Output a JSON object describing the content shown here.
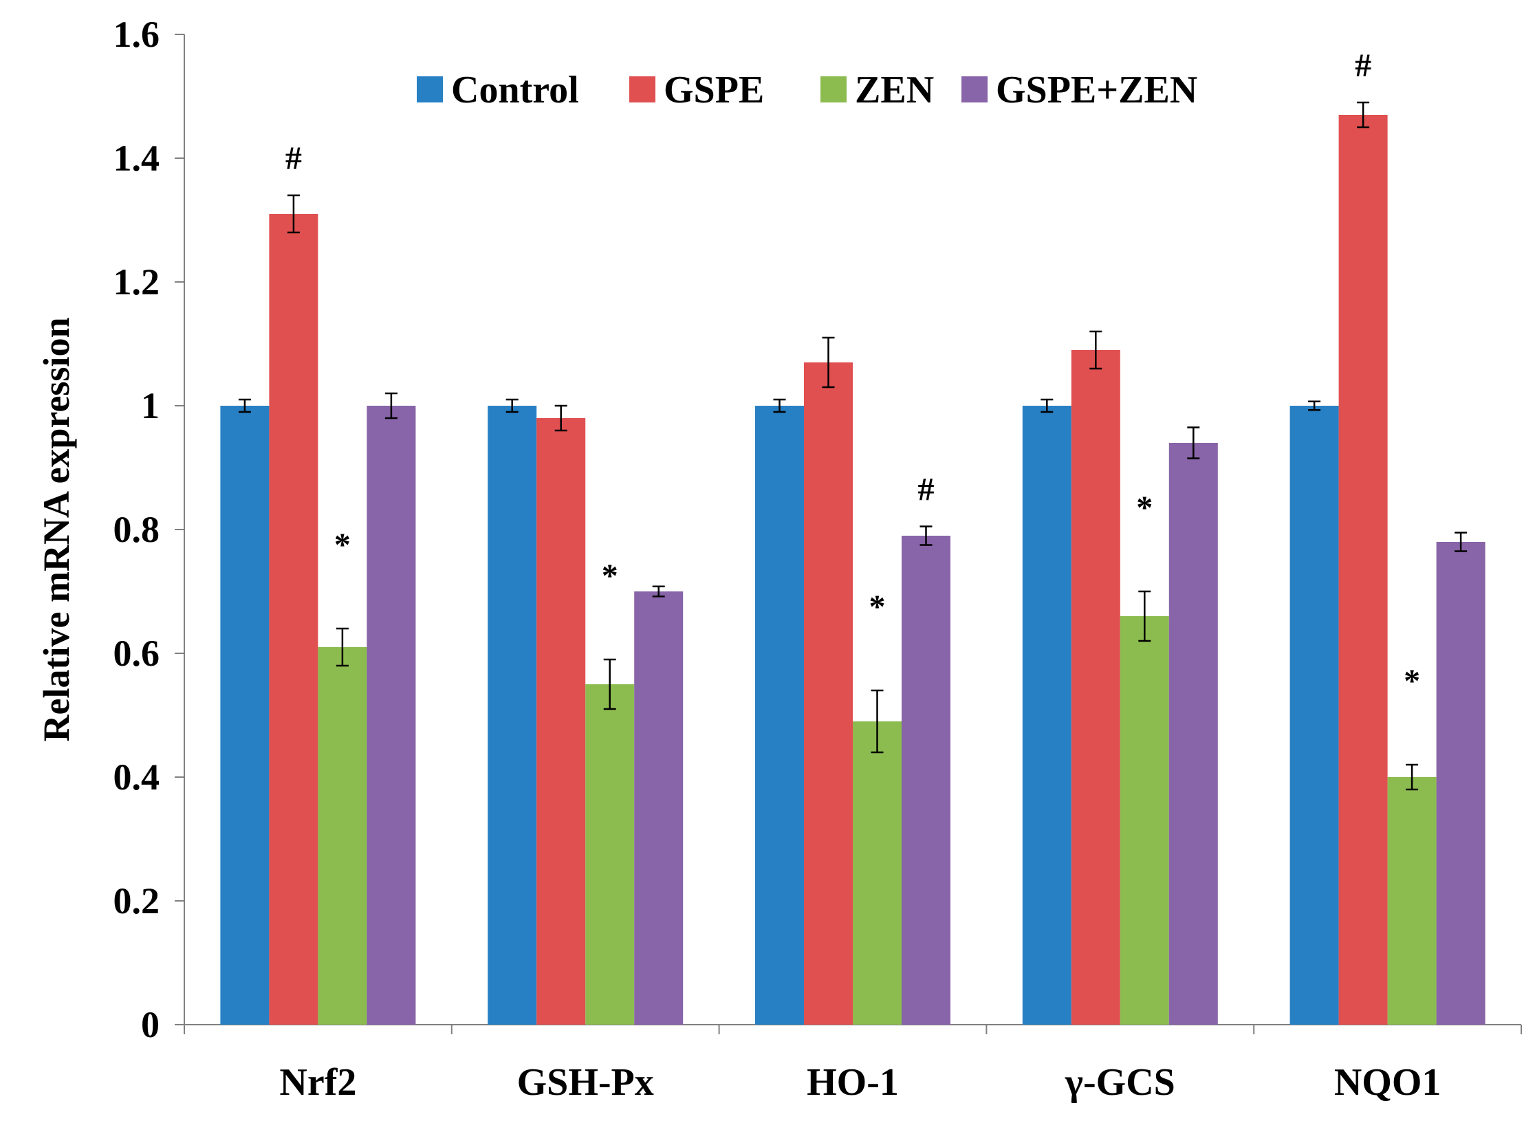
{
  "chart_data": {
    "type": "bar",
    "title": "",
    "xlabel": "",
    "ylabel": "Relative mRNA expression",
    "ylim": [
      0,
      1.6
    ],
    "yticks": [
      0,
      0.2,
      0.4,
      0.6,
      0.8,
      1,
      1.2,
      1.4,
      1.6
    ],
    "ytick_labels": [
      "0",
      "0.2",
      "0.4",
      "0.6",
      "0.8",
      "1",
      "1.2",
      "1.4",
      "1.6"
    ],
    "categories": [
      "Nrf2",
      "GSH-Px",
      "HO-1",
      "γ-GCS",
      "NQO1"
    ],
    "grid": false,
    "legend_position": "top-center",
    "series": [
      {
        "name": "Control",
        "color": "#2880c4",
        "values": [
          1.0,
          1.0,
          1.0,
          1.0,
          1.0
        ],
        "errors": [
          0.01,
          0.01,
          0.01,
          0.01,
          0.007
        ],
        "annotations": [
          "",
          "",
          "",
          "",
          ""
        ]
      },
      {
        "name": "GSPE",
        "color": "#e05050",
        "values": [
          1.31,
          0.98,
          1.07,
          1.09,
          1.47
        ],
        "errors": [
          0.03,
          0.02,
          0.04,
          0.03,
          0.02
        ],
        "annotations": [
          "#",
          "",
          "",
          "",
          "#"
        ]
      },
      {
        "name": "ZEN",
        "color": "#8cbc50",
        "values": [
          0.61,
          0.55,
          0.49,
          0.66,
          0.4
        ],
        "errors": [
          0.03,
          0.04,
          0.05,
          0.04,
          0.02
        ],
        "annotations": [
          "*",
          "*",
          "*",
          "*",
          "*"
        ]
      },
      {
        "name": "GSPE+ZEN",
        "color": "#8864a8",
        "values": [
          1.0,
          0.7,
          0.79,
          0.94,
          0.78
        ],
        "errors": [
          0.02,
          0.008,
          0.015,
          0.025,
          0.015
        ],
        "annotations": [
          "",
          "",
          "#",
          "",
          ""
        ]
      }
    ]
  }
}
